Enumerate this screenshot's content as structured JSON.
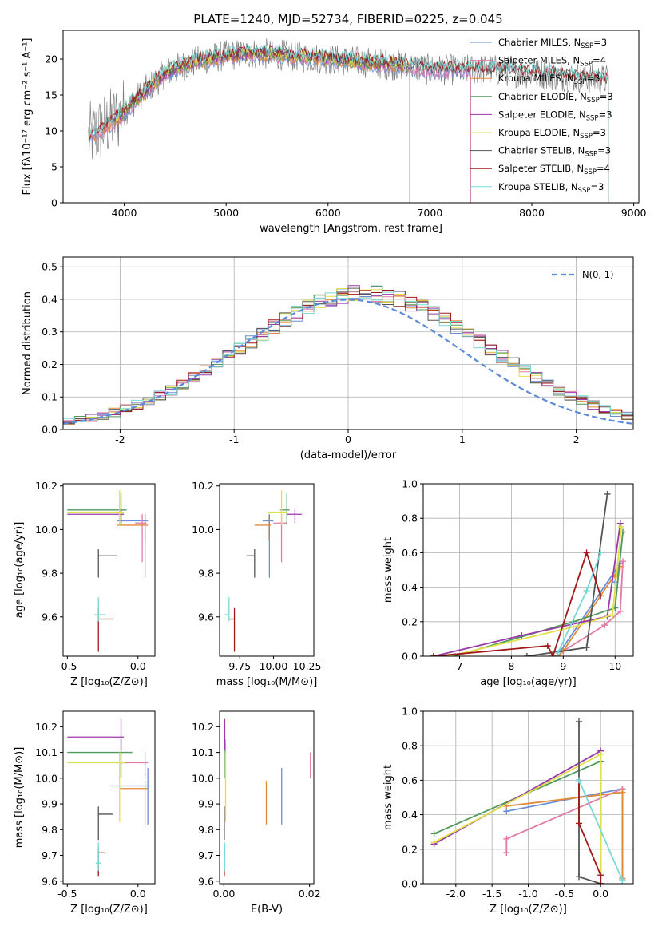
{
  "figure_title": "PLATE=1240, MJD=52734, FIBERID=0225, z=0.045",
  "colors": {
    "Chabrier MILES": "#6a8fd8",
    "Salpeter MILES": "#e07aa8",
    "Kroupa MILES": "#e08a3a",
    "Chabrier ELODIE": "#4f9a5a",
    "Salpeter ELODIE": "#9a3aa8",
    "Kroupa ELODIE": "#e0e04a",
    "Chabrier STELIB": "#555555",
    "Salpeter STELIB": "#a01818",
    "Kroupa STELIB": "#7ad8d8",
    "gauss": "#5a8ad8",
    "observed": "#808080"
  },
  "chart_data": [
    {
      "type": "line",
      "panel": "spectrum",
      "xlabel": "wavelength [Angstrom, rest frame]",
      "ylabel": "Flux [fλ10⁻¹⁷ erg cm⁻² s⁻¹ A⁻¹]",
      "xlim": [
        3400,
        9050
      ],
      "ylim": [
        0,
        24
      ],
      "xticks": [
        4000,
        5000,
        6000,
        7000,
        8000,
        9000
      ],
      "yticks": [
        0,
        5,
        10,
        15,
        20
      ],
      "spectrum_profile": {
        "x": [
          3650,
          3750,
          3850,
          3950,
          4050,
          4200,
          4400,
          4600,
          4800,
          5000,
          5300,
          5600,
          6000,
          6400,
          6800,
          7000,
          7200,
          7600,
          8000,
          8400,
          8800
        ],
        "y": [
          9,
          10,
          11,
          12,
          13.5,
          15.5,
          18,
          19.2,
          20,
          20.5,
          20.8,
          20.5,
          20,
          19.5,
          19,
          18.5,
          18.5,
          18.5,
          18,
          17.5,
          17
        ]
      },
      "legend": [
        {
          "base": "Chabrier MILES",
          "sub": "SSP",
          "n": "3"
        },
        {
          "base": "Salpeter MILES",
          "sub": "SSP",
          "n": "4"
        },
        {
          "base": "Kroupa MILES",
          "sub": "SSP",
          "n": "3"
        },
        {
          "base": "Chabrier ELODIE",
          "sub": "SSP",
          "n": "3"
        },
        {
          "base": "Salpeter ELODIE",
          "sub": "SSP",
          "n": "3"
        },
        {
          "base": "Kroupa ELODIE",
          "sub": "SSP",
          "n": "3"
        },
        {
          "base": "Chabrier STELIB",
          "sub": "SSP",
          "n": "3"
        },
        {
          "base": "Salpeter STELIB",
          "sub": "SSP",
          "n": "4"
        },
        {
          "base": "Kroupa STELIB",
          "sub": "SSP",
          "n": "3"
        }
      ],
      "legend_placement": "upper-right",
      "model_ranges": [
        {
          "series": "Chabrier MILES",
          "start": 3650,
          "end": 7400
        },
        {
          "series": "Salpeter MILES",
          "start": 3650,
          "end": 7400
        },
        {
          "series": "Kroupa MILES",
          "start": 3650,
          "end": 6800
        },
        {
          "series": "Chabrier ELODIE",
          "start": 3900,
          "end": 6800
        },
        {
          "series": "Salpeter ELODIE",
          "start": 3900,
          "end": 6800
        },
        {
          "series": "Kroupa ELODIE",
          "start": 3900,
          "end": 6800
        },
        {
          "series": "Chabrier STELIB",
          "start": 3650,
          "end": 8750
        },
        {
          "series": "Salpeter STELIB",
          "start": 3650,
          "end": 8750
        },
        {
          "series": "Kroupa STELIB",
          "start": 3650,
          "end": 8750
        }
      ]
    },
    {
      "type": "histogram",
      "panel": "residuals",
      "xlabel": "(data-model)/error",
      "ylabel": "Normed distribution",
      "xlim": [
        -2.5,
        2.5
      ],
      "ylim": [
        0,
        0.53
      ],
      "xticks": [
        -2,
        -1,
        0,
        1,
        2
      ],
      "yticks": [
        0.0,
        0.1,
        0.2,
        0.3,
        0.4,
        0.5
      ],
      "grid": true,
      "legend": "N(0, 1)",
      "legend_placement": "upper-right",
      "gaussian": {
        "mean": 0,
        "sigma": 1
      }
    },
    {
      "type": "scatter",
      "panel": "Z-age",
      "xlabel": "Z [log₁₀(Z/Z⊙)]",
      "ylabel": "age  [log₁₀(age/yr)]",
      "xlim": [
        -0.53,
        0.12
      ],
      "ylim": [
        9.42,
        10.21
      ],
      "xticks": [
        -0.5,
        0.0
      ],
      "yticks": [
        9.6,
        9.8,
        10.0,
        10.2
      ],
      "points": [
        {
          "series": "Chabrier MILES",
          "x": 0.05,
          "y": 10.04,
          "xerr": [
            0.2,
            0.02
          ],
          "yerr": [
            0.26,
            0.03
          ]
        },
        {
          "series": "Salpeter MILES",
          "x": 0.03,
          "y": 10.03,
          "xerr": [
            0.05,
            0.03
          ],
          "yerr": [
            0.18,
            0.04
          ]
        },
        {
          "series": "Kroupa MILES",
          "x": 0.05,
          "y": 10.02,
          "xerr": [
            0.2,
            0.02
          ],
          "yerr": [
            0.07,
            0.05
          ]
        },
        {
          "series": "Chabrier ELODIE",
          "x": -0.12,
          "y": 10.09,
          "xerr": [
            0.38,
            0.04
          ],
          "yerr": [
            0.07,
            0.08
          ]
        },
        {
          "series": "Salpeter ELODIE",
          "x": -0.12,
          "y": 10.07,
          "xerr": [
            0.38,
            0.02
          ],
          "yerr": [
            0.04,
            0.02
          ]
        },
        {
          "series": "Kroupa ELODIE",
          "x": -0.13,
          "y": 10.08,
          "xerr": [
            0.37,
            0.03
          ],
          "yerr": [
            0.06,
            0.1
          ]
        },
        {
          "series": "Chabrier STELIB",
          "x": -0.28,
          "y": 9.88,
          "xerr": [
            0.0,
            0.13
          ],
          "yerr": [
            0.1,
            0.03
          ]
        },
        {
          "series": "Salpeter STELIB",
          "x": -0.28,
          "y": 9.59,
          "xerr": [
            0.0,
            0.1
          ],
          "yerr": [
            0.15,
            0.05
          ]
        },
        {
          "series": "Kroupa STELIB",
          "x": -0.28,
          "y": 9.61,
          "xerr": [
            0.03,
            0.05
          ],
          "yerr": [
            0.03,
            0.08
          ]
        }
      ]
    },
    {
      "type": "scatter",
      "panel": "mass-age",
      "xlabel": "mass [log₁₀(M/M⊙)]",
      "ylabel": "",
      "xlim": [
        9.6,
        10.3
      ],
      "ylim": [
        9.42,
        10.21
      ],
      "xticks": [
        9.75,
        10.0,
        10.25
      ],
      "yticks": [
        9.6,
        9.8,
        10.0,
        10.2
      ],
      "points": [
        {
          "series": "Chabrier MILES",
          "x": 9.97,
          "y": 10.04,
          "xerr": [
            0.05,
            0.03
          ],
          "yerr": [
            0.26,
            0.03
          ]
        },
        {
          "series": "Salpeter MILES",
          "x": 10.06,
          "y": 10.03,
          "xerr": [
            0.06,
            0.04
          ],
          "yerr": [
            0.18,
            0.04
          ]
        },
        {
          "series": "Kroupa MILES",
          "x": 9.96,
          "y": 10.02,
          "xerr": [
            0.1,
            0.02
          ],
          "yerr": [
            0.07,
            0.05
          ]
        },
        {
          "series": "Chabrier ELODIE",
          "x": 10.1,
          "y": 10.09,
          "xerr": [
            0.05,
            0.02
          ],
          "yerr": [
            0.07,
            0.08
          ]
        },
        {
          "series": "Salpeter ELODIE",
          "x": 10.16,
          "y": 10.07,
          "xerr": [
            0.06,
            0.05
          ],
          "yerr": [
            0.04,
            0.02
          ]
        },
        {
          "series": "Kroupa ELODIE",
          "x": 10.06,
          "y": 10.08,
          "xerr": [
            0.1,
            0.04
          ],
          "yerr": [
            0.06,
            0.1
          ]
        },
        {
          "series": "Chabrier STELIB",
          "x": 9.86,
          "y": 9.88,
          "xerr": [
            0.06,
            0.0
          ],
          "yerr": [
            0.1,
            0.03
          ]
        },
        {
          "series": "Salpeter STELIB",
          "x": 9.71,
          "y": 9.59,
          "xerr": [
            0.05,
            0.0
          ],
          "yerr": [
            0.15,
            0.05
          ]
        },
        {
          "series": "Kroupa STELIB",
          "x": 9.67,
          "y": 9.61,
          "xerr": [
            0.03,
            0.0
          ],
          "yerr": [
            0.03,
            0.08
          ]
        }
      ]
    },
    {
      "type": "line",
      "panel": "age-weight",
      "xlabel": "age  [log₁₀(age/yr)]",
      "ylabel": "mass weight",
      "xlim": [
        6.3,
        10.35
      ],
      "ylim": [
        0,
        1
      ],
      "xticks": [
        7,
        8,
        9,
        10
      ],
      "yticks": [
        0.0,
        0.2,
        0.4,
        0.6,
        0.8,
        1.0
      ],
      "grid": true,
      "series": [
        {
          "name": "Chabrier MILES",
          "x": [
            8.95,
            10.1,
            10.0
          ],
          "y": [
            0.03,
            0.54,
            0.43
          ]
        },
        {
          "name": "Salpeter MILES",
          "x": [
            9.0,
            9.8,
            10.1,
            10.15
          ],
          "y": [
            0.03,
            0.18,
            0.26,
            0.55
          ]
        },
        {
          "name": "Kroupa MILES",
          "x": [
            8.9,
            9.0,
            10.1,
            10.0
          ],
          "y": [
            0.0,
            0.03,
            0.52,
            0.46
          ]
        },
        {
          "name": "Chabrier ELODIE",
          "x": [
            6.9,
            9.2,
            10.0,
            10.15
          ],
          "y": [
            0.0,
            0.2,
            0.28,
            0.72
          ]
        },
        {
          "name": "Salpeter ELODIE",
          "x": [
            6.5,
            8.2,
            9.85,
            10.1
          ],
          "y": [
            0.0,
            0.12,
            0.23,
            0.77
          ]
        },
        {
          "name": "Kroupa ELODIE",
          "x": [
            6.8,
            9.2,
            9.95,
            10.12
          ],
          "y": [
            0.0,
            0.17,
            0.24,
            0.75
          ]
        },
        {
          "name": "Chabrier STELIB",
          "x": [
            8.3,
            9.45,
            9.85
          ],
          "y": [
            0.0,
            0.05,
            0.94
          ]
        },
        {
          "name": "Salpeter STELIB",
          "x": [
            6.5,
            8.7,
            8.8,
            9.45,
            9.72
          ],
          "y": [
            0.0,
            0.06,
            0.0,
            0.6,
            0.35
          ]
        },
        {
          "name": "Kroupa STELIB",
          "x": [
            8.9,
            9.45,
            9.72
          ],
          "y": [
            0.02,
            0.38,
            0.6
          ]
        }
      ]
    },
    {
      "type": "scatter",
      "panel": "Z-mass",
      "xlabel": "Z [log₁₀(Z/Z⊙)]",
      "ylabel": "mass [log₁₀(M/M⊙)]",
      "xlim": [
        -0.53,
        0.12
      ],
      "ylim": [
        9.59,
        10.26
      ],
      "xticks": [
        -0.5,
        0.0
      ],
      "yticks": [
        9.6,
        9.7,
        9.8,
        9.9,
        10.0,
        10.1,
        10.2
      ],
      "points": [
        {
          "series": "Chabrier MILES",
          "x": 0.07,
          "y": 9.97,
          "xerr": [
            0.27,
            0.02
          ],
          "yerr": [
            0.15,
            0.07
          ]
        },
        {
          "series": "Salpeter MILES",
          "x": 0.05,
          "y": 10.06,
          "xerr": [
            0.2,
            0.02
          ],
          "yerr": [
            0.06,
            0.04
          ]
        },
        {
          "series": "Kroupa MILES",
          "x": 0.05,
          "y": 9.96,
          "xerr": [
            0.18,
            0.02
          ],
          "yerr": [
            0.14,
            0.03
          ]
        },
        {
          "series": "Chabrier ELODIE",
          "x": -0.12,
          "y": 10.1,
          "xerr": [
            0.38,
            0.08
          ],
          "yerr": [
            0.1,
            0.05
          ]
        },
        {
          "series": "Salpeter ELODIE",
          "x": -0.12,
          "y": 10.16,
          "xerr": [
            0.38,
            0.02
          ],
          "yerr": [
            0.05,
            0.07
          ]
        },
        {
          "series": "Kroupa ELODIE",
          "x": -0.13,
          "y": 10.06,
          "xerr": [
            0.37,
            0.04
          ],
          "yerr": [
            0.23,
            0.04
          ]
        },
        {
          "series": "Chabrier STELIB",
          "x": -0.28,
          "y": 9.86,
          "xerr": [
            0.0,
            0.1
          ],
          "yerr": [
            0.1,
            0.03
          ]
        },
        {
          "series": "Salpeter STELIB",
          "x": -0.28,
          "y": 9.71,
          "xerr": [
            0.0,
            0.05
          ],
          "yerr": [
            0.09,
            0.02
          ]
        },
        {
          "series": "Kroupa STELIB",
          "x": -0.28,
          "y": 9.67,
          "xerr": [
            0.02,
            0.02
          ],
          "yerr": [
            0.03,
            0.08
          ]
        }
      ]
    },
    {
      "type": "scatter",
      "panel": "EBV-mass",
      "xlabel": "E(B-V)",
      "ylabel": "",
      "xlim": [
        -0.001,
        0.021
      ],
      "ylim": [
        9.59,
        10.26
      ],
      "xticks": [
        0.0,
        0.02
      ],
      "yticks": [
        9.6,
        9.7,
        9.8,
        9.9,
        10.0,
        10.1,
        10.2
      ],
      "points": [
        {
          "series": "Chabrier MILES",
          "x": 0.0135,
          "y": 9.97,
          "xerr": [
            0,
            0
          ],
          "yerr": [
            0.15,
            0.07
          ]
        },
        {
          "series": "Salpeter MILES",
          "x": 0.0202,
          "y": 10.06,
          "xerr": [
            0,
            0
          ],
          "yerr": [
            0.06,
            0.04
          ]
        },
        {
          "series": "Kroupa MILES",
          "x": 0.0099,
          "y": 9.96,
          "xerr": [
            0,
            0
          ],
          "yerr": [
            0.14,
            0.03
          ]
        },
        {
          "series": "Chabrier ELODIE",
          "x": 0.0003,
          "y": 10.1,
          "xerr": [
            0,
            0
          ],
          "yerr": [
            0.1,
            0.05
          ]
        },
        {
          "series": "Salpeter ELODIE",
          "x": 0.0002,
          "y": 10.16,
          "xerr": [
            0,
            0
          ],
          "yerr": [
            0.05,
            0.07
          ]
        },
        {
          "series": "Kroupa ELODIE",
          "x": 0.0004,
          "y": 10.06,
          "xerr": [
            0,
            0
          ],
          "yerr": [
            0.23,
            0.04
          ]
        },
        {
          "series": "Chabrier STELIB",
          "x": 0.0001,
          "y": 9.86,
          "xerr": [
            0,
            0
          ],
          "yerr": [
            0.1,
            0.03
          ]
        },
        {
          "series": "Salpeter STELIB",
          "x": 0.0001,
          "y": 9.71,
          "xerr": [
            0,
            0
          ],
          "yerr": [
            0.09,
            0.02
          ]
        },
        {
          "series": "Kroupa STELIB",
          "x": 0.0002,
          "y": 9.67,
          "xerr": [
            0,
            0
          ],
          "yerr": [
            0.03,
            0.08
          ]
        }
      ]
    },
    {
      "type": "line",
      "panel": "Z-weight",
      "xlabel": "Z [log₁₀(Z/Z⊙)]",
      "ylabel": "mass weight",
      "xlim": [
        -2.45,
        0.45
      ],
      "ylim": [
        0,
        1
      ],
      "xticks": [
        -2.0,
        -1.5,
        -1.0,
        -0.5,
        0.0
      ],
      "yticks": [
        0.0,
        0.2,
        0.4,
        0.6,
        0.8,
        1.0
      ],
      "grid": true,
      "series": [
        {
          "name": "Chabrier MILES",
          "x": [
            -1.3,
            0.3,
            0.3
          ],
          "y": [
            0.42,
            0.55,
            0.03
          ]
        },
        {
          "name": "Salpeter MILES",
          "x": [
            -1.3,
            -1.3,
            0.3,
            0.3
          ],
          "y": [
            0.18,
            0.26,
            0.55,
            0.03
          ]
        },
        {
          "name": "Kroupa MILES",
          "x": [
            -1.3,
            0.3,
            0.3
          ],
          "y": [
            0.45,
            0.53,
            0.03
          ]
        },
        {
          "name": "Chabrier ELODIE",
          "x": [
            -2.3,
            0.0,
            0.0
          ],
          "y": [
            0.29,
            0.71,
            0.0
          ]
        },
        {
          "name": "Salpeter ELODIE",
          "x": [
            -2.3,
            0.0,
            0.0
          ],
          "y": [
            0.23,
            0.77,
            0.0
          ]
        },
        {
          "name": "Kroupa ELODIE",
          "x": [
            -2.3,
            0.0,
            0.0
          ],
          "y": [
            0.24,
            0.75,
            0.0
          ]
        },
        {
          "name": "Chabrier STELIB",
          "x": [
            -0.3,
            -0.3,
            0.0,
            0.0
          ],
          "y": [
            0.94,
            0.04,
            0.0,
            0.0
          ]
        },
        {
          "name": "Salpeter STELIB",
          "x": [
            -0.3,
            -0.3,
            0.0,
            0.0
          ],
          "y": [
            0.6,
            0.35,
            0.05,
            0.0
          ]
        },
        {
          "name": "Kroupa STELIB",
          "x": [
            -0.3,
            0.3,
            0.3
          ],
          "y": [
            0.6,
            0.02,
            0.02
          ]
        }
      ]
    }
  ]
}
